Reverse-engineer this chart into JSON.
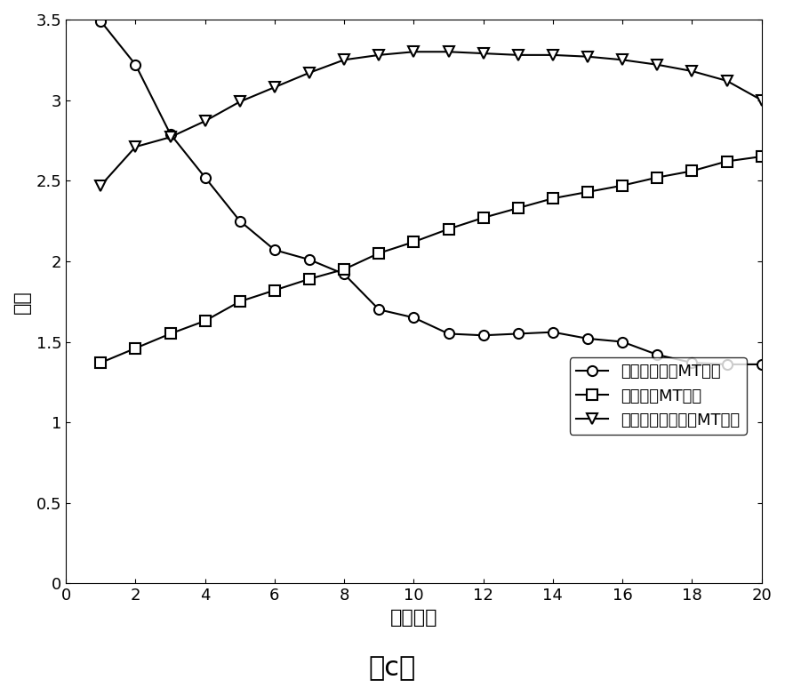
{
  "title": "（c）",
  "xlabel": "尺度因子",
  "ylabel": "熵値",
  "xlim": [
    0,
    20
  ],
  "ylim": [
    0,
    3.5
  ],
  "xticks": [
    0,
    2,
    4,
    6,
    8,
    10,
    12,
    14,
    16,
    18,
    20
  ],
  "yticks": [
    0,
    0.5,
    1.0,
    1.5,
    2.0,
    2.5,
    3.0,
    3.5
  ],
  "x": [
    1,
    2,
    3,
    4,
    5,
    6,
    7,
    8,
    9,
    10,
    11,
    12,
    13,
    14,
    15,
    16,
    17,
    18,
    19,
    20
  ],
  "circle_series": [
    3.49,
    3.22,
    2.79,
    2.52,
    2.25,
    2.07,
    2.01,
    1.92,
    1.7,
    1.65,
    1.55,
    1.54,
    1.55,
    1.56,
    1.52,
    1.5,
    1.42,
    1.37,
    1.36,
    1.36
  ],
  "square_series": [
    1.37,
    1.46,
    1.55,
    1.63,
    1.75,
    1.82,
    1.89,
    1.95,
    2.05,
    2.12,
    2.2,
    2.27,
    2.33,
    2.39,
    2.43,
    2.47,
    2.52,
    2.56,
    2.62,
    2.65
  ],
  "triangle_series": [
    2.47,
    2.71,
    2.77,
    2.87,
    2.99,
    3.08,
    3.17,
    3.25,
    3.28,
    3.3,
    3.3,
    3.29,
    3.28,
    3.28,
    3.27,
    3.25,
    3.22,
    3.18,
    3.12,
    3.0
  ],
  "legend_labels": [
    "未受到干扰的MT信号",
    "方波干扰MT信号",
    "充放电三角波干扰MT信号"
  ],
  "line_color": "#000000",
  "background_color": "#ffffff",
  "font_size_axis_label": 16,
  "font_size_tick": 13,
  "font_size_title": 22,
  "font_size_legend": 13,
  "line_width": 1.5,
  "marker_size": 8
}
